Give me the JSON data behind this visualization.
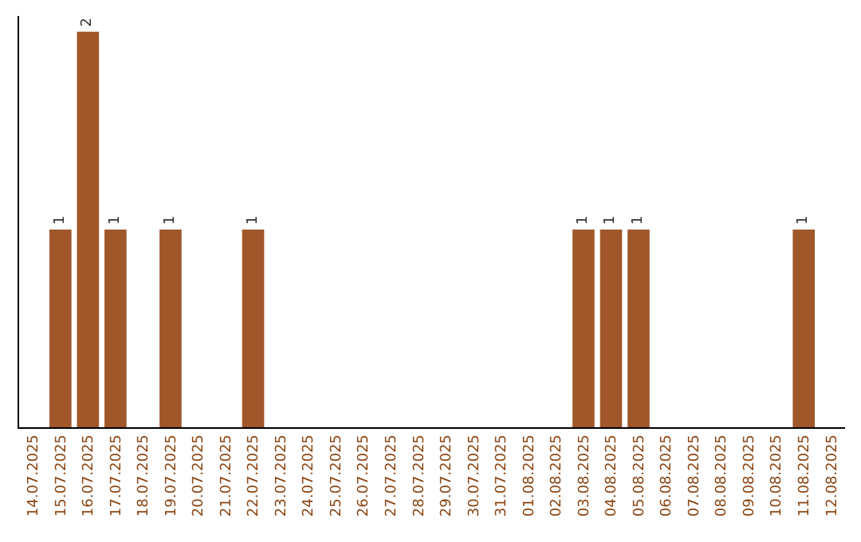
{
  "chart_data": {
    "type": "bar",
    "categories": [
      "14.07.2025",
      "15.07.2025",
      "16.07.2025",
      "17.07.2025",
      "18.07.2025",
      "19.07.2025",
      "20.07.2025",
      "21.07.2025",
      "22.07.2025",
      "23.07.2025",
      "24.07.2025",
      "25.07.2025",
      "26.07.2025",
      "27.07.2025",
      "28.07.2025",
      "29.07.2025",
      "30.07.2025",
      "31.07.2025",
      "01.08.2025",
      "02.08.2025",
      "03.08.2025",
      "04.08.2025",
      "05.08.2025",
      "06.08.2025",
      "07.08.2025",
      "08.08.2025",
      "09.08.2025",
      "10.08.2025",
      "11.08.2025",
      "12.08.2025"
    ],
    "values": [
      null,
      1,
      2,
      1,
      null,
      1,
      null,
      null,
      1,
      null,
      null,
      null,
      null,
      null,
      null,
      null,
      null,
      null,
      null,
      null,
      1,
      1,
      1,
      null,
      null,
      null,
      null,
      null,
      1,
      null
    ],
    "color": "#a0572a",
    "ylim": [
      0,
      2.08
    ],
    "data_labels": true
  }
}
